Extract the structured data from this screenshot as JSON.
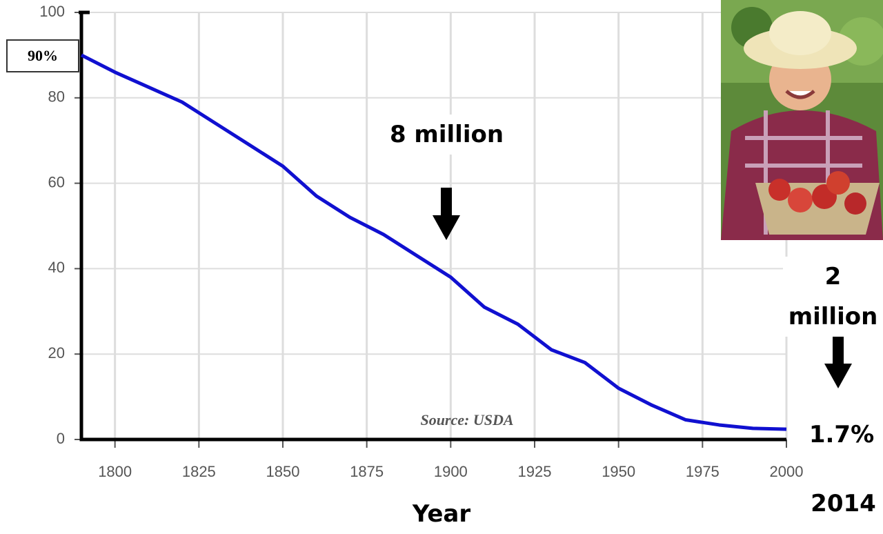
{
  "chart_data": {
    "type": "line",
    "x_label": "Year",
    "x": [
      1790,
      1800,
      1810,
      1820,
      1830,
      1840,
      1850,
      1860,
      1870,
      1880,
      1890,
      1900,
      1910,
      1920,
      1930,
      1940,
      1950,
      1960,
      1970,
      1980,
      1990,
      2000
    ],
    "series": [
      {
        "color": "#1010d0",
        "values": [
          90,
          86,
          82.5,
          79,
          74,
          69,
          64,
          57,
          52,
          48,
          43,
          38,
          31,
          27,
          21,
          18,
          12,
          8,
          4.6,
          3.4,
          2.6,
          2.4
        ]
      }
    ],
    "xlim": [
      1790,
      2000
    ],
    "xticks": [
      1800,
      1825,
      1850,
      1875,
      1900,
      1925,
      1950,
      1975,
      2000
    ],
    "ylim": [
      0,
      100
    ],
    "yticks": [
      0,
      20,
      40,
      60,
      80,
      100
    ],
    "grid": true,
    "annotations": {
      "start": "90%",
      "mid": "8 million",
      "end": "2 million",
      "end_percent": "1.7%",
      "end_year": "2014",
      "source": "Source: USDA"
    }
  }
}
